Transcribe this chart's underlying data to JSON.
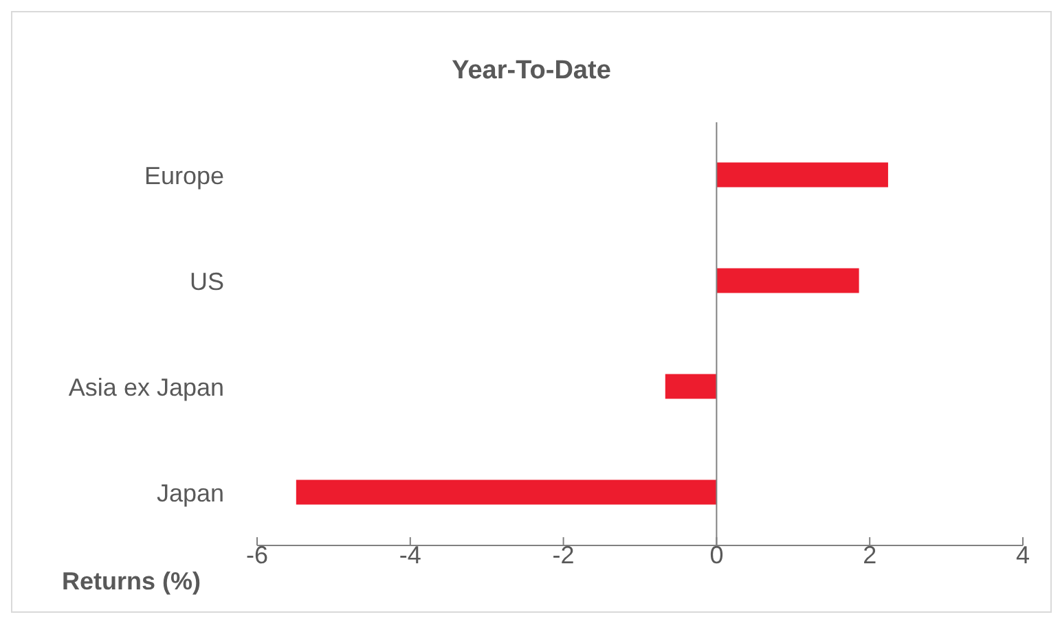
{
  "chart_data": {
    "type": "bar",
    "orientation": "horizontal",
    "title": "Year-To-Date",
    "xlabel": "Returns (%)",
    "categories": [
      "Europe",
      "US",
      "Asia ex Japan",
      "Japan"
    ],
    "values": [
      2.24,
      1.86,
      -0.67,
      -5.49
    ],
    "color": "#ed1c2e",
    "xlim": [
      -6,
      4
    ],
    "xticks": [
      -6,
      -4,
      -2,
      0,
      2,
      4
    ],
    "ref_lines": [
      {
        "axis": "x",
        "value": 0,
        "color": "#808080"
      }
    ]
  }
}
